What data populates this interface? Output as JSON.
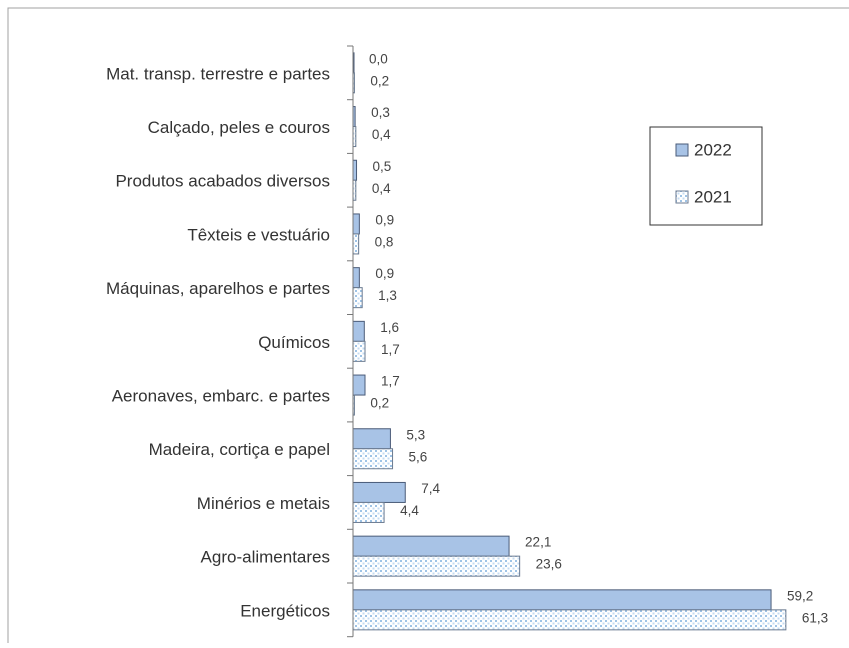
{
  "chart_data": {
    "type": "barh",
    "categories": [
      "Mat. transp. terrestre e partes",
      "Calçado, peles e couros",
      "Produtos acabados diversos",
      "Têxteis e vestuário",
      "Máquinas, aparelhos e partes",
      "Químicos",
      "Aeronaves, embarc. e partes",
      "Madeira, cortiça e papel",
      "Minérios e metais",
      "Agro-alimentares",
      "Energéticos"
    ],
    "series": [
      {
        "name": "2022",
        "color": "#a8c3e6",
        "values": [
          0.0,
          0.3,
          0.5,
          0.9,
          0.9,
          1.6,
          1.7,
          5.3,
          7.4,
          22.1,
          59.2
        ],
        "value_labels": [
          "0,0",
          "0,3",
          "0,5",
          "0,9",
          "0,9",
          "1,6",
          "1,7",
          "5,3",
          "7,4",
          "22,1",
          "59,2"
        ]
      },
      {
        "name": "2021",
        "color": "#bcd6ee",
        "values": [
          0.2,
          0.4,
          0.4,
          0.8,
          1.3,
          1.7,
          0.2,
          5.6,
          4.4,
          23.6,
          61.3
        ],
        "value_labels": [
          "0,2",
          "0,4",
          "0,4",
          "0,8",
          "1,3",
          "1,7",
          "0,2",
          "5,6",
          "4,4",
          "23,6",
          "61,3"
        ]
      }
    ],
    "xlim": [
      0,
      65
    ],
    "legend": "upper right"
  }
}
